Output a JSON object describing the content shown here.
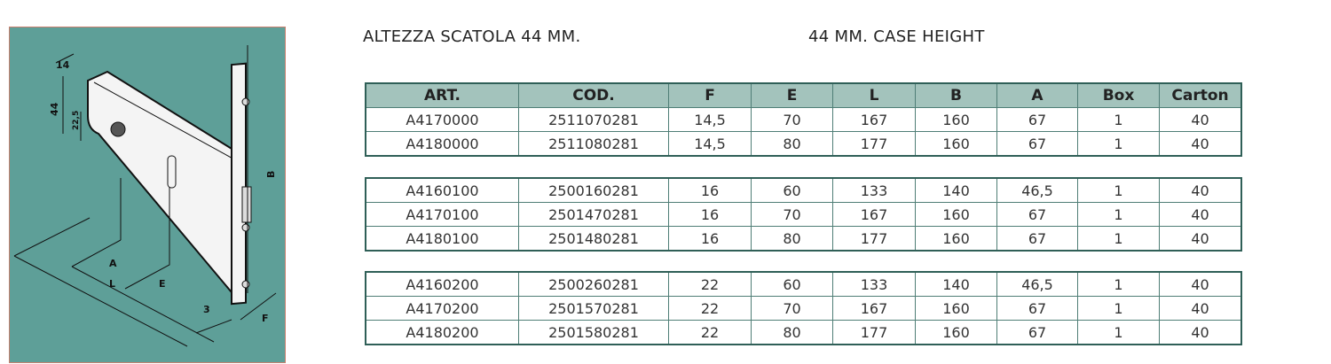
{
  "diagram": {
    "labels": {
      "width": "14",
      "height": "44",
      "offset": "22,5",
      "B": "B",
      "A": "A",
      "L": "L",
      "E": "E",
      "three": "3",
      "F": "F"
    },
    "background_color": "#5e9f98"
  },
  "titles": {
    "italian": "ALTEZZA SCATOLA 44 MM.",
    "english": "44 MM. CASE HEIGHT"
  },
  "table": {
    "headers": [
      "ART.",
      "COD.",
      "F",
      "E",
      "L",
      "B",
      "A",
      "Box",
      "Carton"
    ],
    "groups": [
      [
        [
          "A4170000",
          "2511070281",
          "14,5",
          "70",
          "167",
          "160",
          "67",
          "1",
          "40"
        ],
        [
          "A4180000",
          "2511080281",
          "14,5",
          "80",
          "177",
          "160",
          "67",
          "1",
          "40"
        ]
      ],
      [
        [
          "A4160100",
          "2500160281",
          "16",
          "60",
          "133",
          "140",
          "46,5",
          "1",
          "40"
        ],
        [
          "A4170100",
          "2501470281",
          "16",
          "70",
          "167",
          "160",
          "67",
          "1",
          "40"
        ],
        [
          "A4180100",
          "2501480281",
          "16",
          "80",
          "177",
          "160",
          "67",
          "1",
          "40"
        ]
      ],
      [
        [
          "A4160200",
          "2500260281",
          "22",
          "60",
          "133",
          "140",
          "46,5",
          "1",
          "40"
        ],
        [
          "A4170200",
          "2501570281",
          "22",
          "70",
          "167",
          "160",
          "67",
          "1",
          "40"
        ],
        [
          "A4180200",
          "2501580281",
          "22",
          "80",
          "177",
          "160",
          "67",
          "1",
          "40"
        ]
      ]
    ],
    "header_color": "#a3c3bc",
    "border_color": "#2f5f57"
  }
}
